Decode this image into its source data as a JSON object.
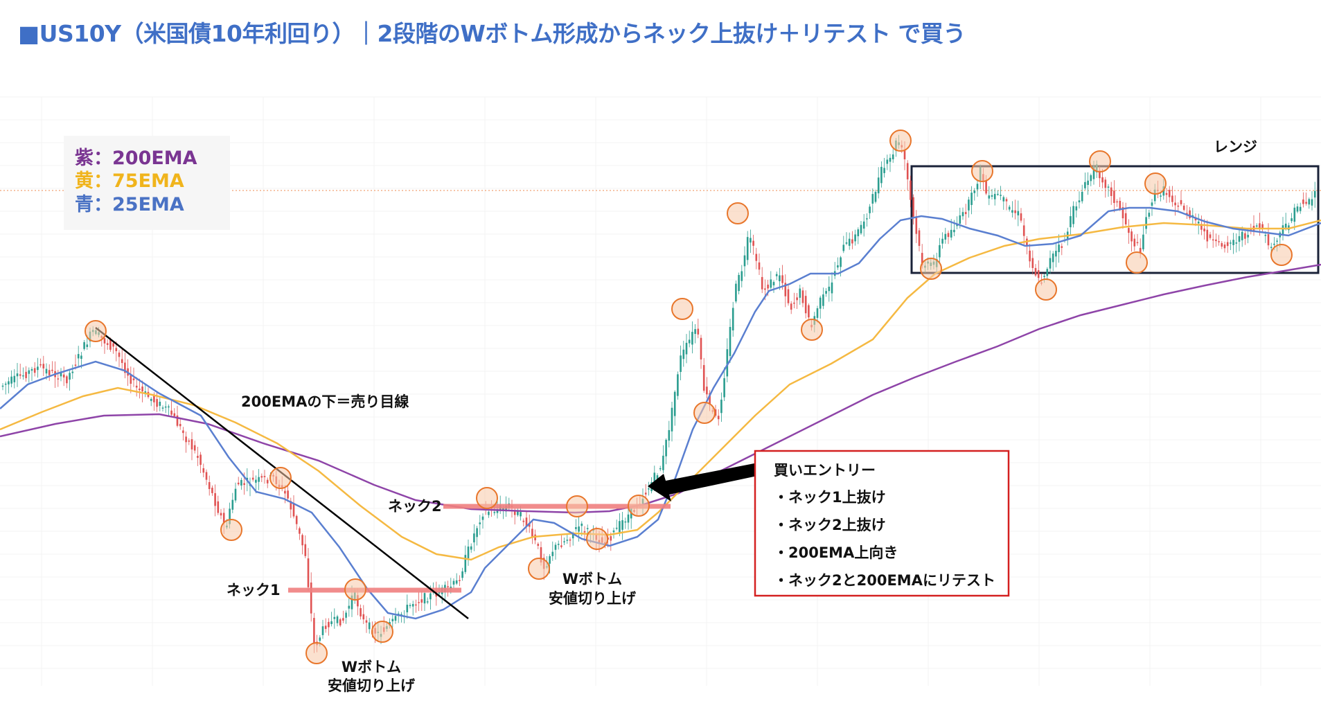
{
  "header": {
    "title": "■US10Y（米国債10年利回り）｜2段階のWボトム形成からネック上抜け＋リテスト で買う"
  },
  "legend": [
    {
      "label": "紫：200EMA",
      "color": "#7a3592"
    },
    {
      "label": "黄：75EMA",
      "color": "#f0b41c"
    },
    {
      "label": "青：25EMA",
      "color": "#4a72c4"
    }
  ],
  "annotations": {
    "below_200": "200EMAの下＝売り目線",
    "neck1": "ネック1",
    "neck2": "ネック2",
    "wbottom1_line1": "Wボトム",
    "wbottom1_line2": "安値切り上げ",
    "wbottom2_line1": "Wボトム",
    "wbottom2_line2": "安値切り上げ",
    "range": "レンジ"
  },
  "entry_box": {
    "title": "買いエントリー",
    "items": [
      "・ネック1上抜け",
      "・ネック2上抜け",
      "・200EMA上向き",
      "・ネック2と200EMAにリテスト"
    ],
    "border_color": "#d42020"
  },
  "colors": {
    "up_candle": "#2a9d8f",
    "down_candle": "#e05252",
    "neck_line": "#f08080",
    "circle_stroke": "#e8762b",
    "circle_fill": "#f7c9a8",
    "range_box": "#1a2238",
    "trend_line": "#000000"
  },
  "chart_data": {
    "type": "candlestick",
    "title": "",
    "xlabel": "",
    "ylabel": "",
    "series": [
      {
        "name": "200EMA"
      },
      {
        "name": "75EMA"
      },
      {
        "name": "25EMA"
      }
    ]
  }
}
